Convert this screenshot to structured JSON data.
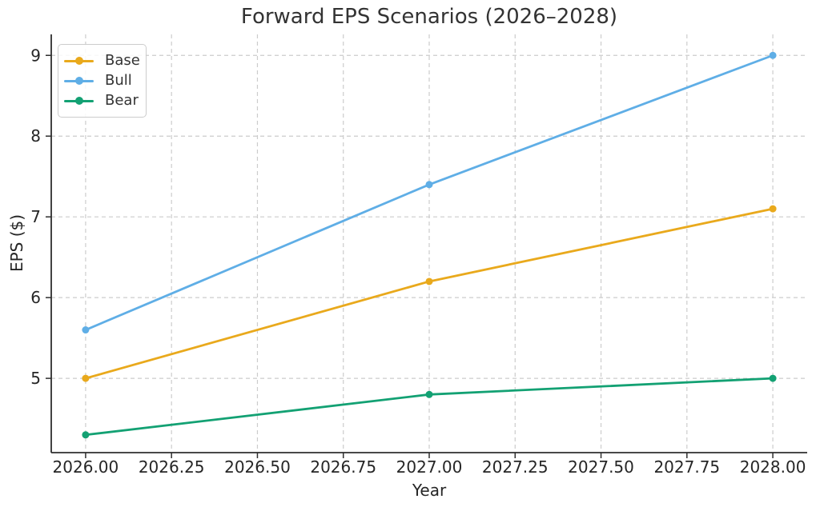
{
  "chart_data": {
    "type": "line",
    "title": "Forward EPS Scenarios (2026–2028)",
    "xlabel": "Year",
    "ylabel": "EPS ($)",
    "x": [
      2026,
      2027,
      2028
    ],
    "series": [
      {
        "name": "Base",
        "color": "#E9A91C",
        "values": [
          5.0,
          6.2,
          7.1
        ]
      },
      {
        "name": "Bull",
        "color": "#5FAEE6",
        "values": [
          5.6,
          7.4,
          9.0
        ]
      },
      {
        "name": "Bear",
        "color": "#13A173",
        "values": [
          4.3,
          4.8,
          5.0
        ]
      }
    ],
    "xticks": {
      "values": [
        2026.0,
        2026.25,
        2026.5,
        2026.75,
        2027.0,
        2027.25,
        2027.5,
        2027.75,
        2028.0
      ],
      "labels": [
        "2026.00",
        "2026.25",
        "2026.50",
        "2026.75",
        "2027.00",
        "2027.25",
        "2027.50",
        "2027.75",
        "2028.00"
      ]
    },
    "yticks": {
      "values": [
        5,
        6,
        7,
        8,
        9
      ],
      "labels": [
        "5",
        "6",
        "7",
        "8",
        "9"
      ]
    },
    "xlim": [
      2025.9,
      2028.1
    ],
    "ylim": [
      4.08,
      9.26
    ],
    "grid": true,
    "grid_style": "dashed",
    "legend_position": "upper-left",
    "marker": "circle",
    "line_width": 2.8,
    "marker_radius": 4.5,
    "colors": {
      "axis": "#2e2e2e",
      "grid": "#cccccc",
      "text": "#262626",
      "title": "#333333",
      "background": "#ffffff"
    }
  }
}
